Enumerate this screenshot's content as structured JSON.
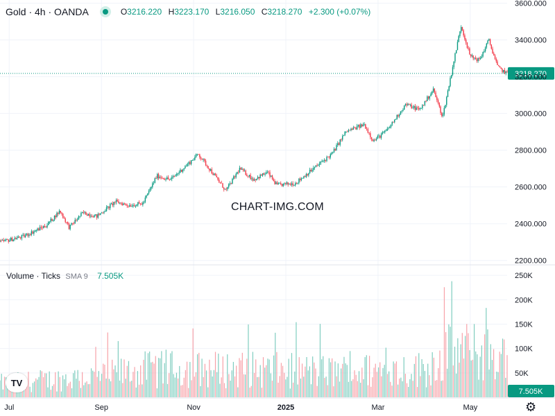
{
  "header": {
    "symbol": "Gold · 4h · OANDA",
    "open_label": "O",
    "open": "3216.220",
    "high_label": "H",
    "high": "3223.170",
    "low_label": "L",
    "low": "3216.050",
    "close_label": "C",
    "close": "3218.270",
    "change": "+2.300 (+0.07%)"
  },
  "volume_header": {
    "title": "Volume · Ticks",
    "sma": "SMA 9",
    "value": "7.505K"
  },
  "watermark": "CHART-IMG.COM",
  "logo": "TV",
  "icons": {
    "logo": "tradingview-logo-icon",
    "settings": "gear-icon"
  },
  "colors": {
    "up": "#089981",
    "down": "#f23645",
    "vol_up": "#7fcdbf",
    "vol_down": "#f7a1a8",
    "price_line": "#089981"
  },
  "chart_data": [
    {
      "type": "candlestick",
      "title": "Gold · 4h · OANDA",
      "y_ticks": [
        "3600.000",
        "3400.000",
        "3200.000",
        "3000.000",
        "2800.000",
        "2600.000",
        "2400.000",
        "2200.000"
      ],
      "y_tick_values": [
        3600,
        3400,
        3200,
        3000,
        2800,
        2600,
        2400,
        2200
      ],
      "ylim": [
        2180,
        3610
      ],
      "x_ticks": [
        "Jul",
        "Sep",
        "Nov",
        "2025",
        "Mar",
        "May"
      ],
      "x_tick_months": [
        0,
        2,
        4,
        6,
        8,
        10
      ],
      "month_span": [
        -0.2,
        10.8
      ],
      "last_price": "3218.270",
      "grid": true,
      "approx_close_path": [
        {
          "m": -0.2,
          "y": 2300
        },
        {
          "m": 0.3,
          "y": 2330
        },
        {
          "m": 0.8,
          "y": 2390
        },
        {
          "m": 1.1,
          "y": 2470
        },
        {
          "m": 1.3,
          "y": 2380
        },
        {
          "m": 1.6,
          "y": 2460
        },
        {
          "m": 1.9,
          "y": 2440
        },
        {
          "m": 2.3,
          "y": 2520
        },
        {
          "m": 2.6,
          "y": 2500
        },
        {
          "m": 2.9,
          "y": 2510
        },
        {
          "m": 3.2,
          "y": 2660
        },
        {
          "m": 3.5,
          "y": 2640
        },
        {
          "m": 3.9,
          "y": 2730
        },
        {
          "m": 4.1,
          "y": 2780
        },
        {
          "m": 4.4,
          "y": 2680
        },
        {
          "m": 4.7,
          "y": 2580
        },
        {
          "m": 5.0,
          "y": 2700
        },
        {
          "m": 5.3,
          "y": 2640
        },
        {
          "m": 5.6,
          "y": 2680
        },
        {
          "m": 5.8,
          "y": 2610
        },
        {
          "m": 6.2,
          "y": 2620
        },
        {
          "m": 6.6,
          "y": 2700
        },
        {
          "m": 7.0,
          "y": 2780
        },
        {
          "m": 7.3,
          "y": 2900
        },
        {
          "m": 7.7,
          "y": 2940
        },
        {
          "m": 7.9,
          "y": 2850
        },
        {
          "m": 8.2,
          "y": 2910
        },
        {
          "m": 8.6,
          "y": 3050
        },
        {
          "m": 8.9,
          "y": 3020
        },
        {
          "m": 9.2,
          "y": 3130
        },
        {
          "m": 9.4,
          "y": 2980
        },
        {
          "m": 9.6,
          "y": 3230
        },
        {
          "m": 9.8,
          "y": 3480
        },
        {
          "m": 10.0,
          "y": 3310
        },
        {
          "m": 10.2,
          "y": 3290
        },
        {
          "m": 10.4,
          "y": 3400
        },
        {
          "m": 10.6,
          "y": 3250
        },
        {
          "m": 10.8,
          "y": 3218
        }
      ]
    },
    {
      "type": "bar",
      "title": "Volume · Ticks",
      "y_ticks": [
        "250K",
        "200K",
        "150K",
        "100K",
        "50K"
      ],
      "y_tick_values": [
        250000,
        200000,
        150000,
        100000,
        50000
      ],
      "ylim": [
        0,
        270000
      ],
      "last_value": "7.505K",
      "approx_level_path": [
        {
          "m": -0.2,
          "y": 30000
        },
        {
          "m": 2.0,
          "y": 45000
        },
        {
          "m": 3.0,
          "y": 60000
        },
        {
          "m": 5.0,
          "y": 60000
        },
        {
          "m": 7.0,
          "y": 55000
        },
        {
          "m": 9.0,
          "y": 60000
        },
        {
          "m": 9.6,
          "y": 100000
        },
        {
          "m": 10.8,
          "y": 90000
        }
      ]
    }
  ]
}
